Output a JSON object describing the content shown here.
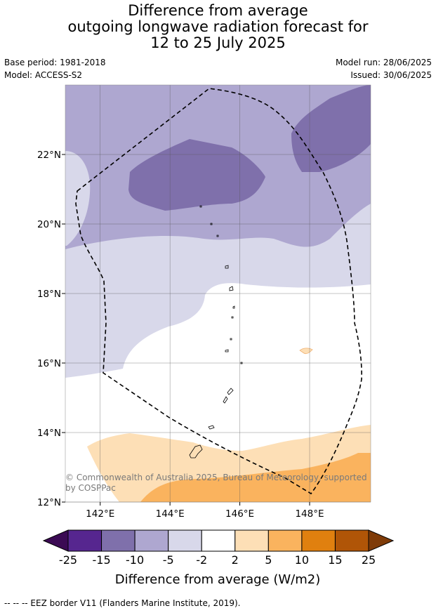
{
  "title": {
    "line1": "Difference from average",
    "line2": "outgoing longwave radiation forecast for",
    "line3": "12 to 25 July 2025"
  },
  "meta": {
    "base_period": "Base period: 1981-2018",
    "model": "Model: ACCESS-S2",
    "model_run": "Model run: 28/06/2025",
    "issued": "Issued: 30/06/2025"
  },
  "copyright": {
    "line1": "© Commonwealth of Australia 2025, Bureau of Meteorology, supported",
    "line2": "by COSPPac"
  },
  "footer": "--  --  -- EEZ border V11 (Flanders Marine Institute, 2019).",
  "chart_data": {
    "type": "heatmap",
    "title": "Difference from average outgoing longwave radiation forecast for 12 to 25 July 2025",
    "xlabel": "",
    "ylabel": "",
    "x_ticks": [
      "142°E",
      "144°E",
      "146°E",
      "148°E"
    ],
    "x_tick_values": [
      142,
      144,
      146,
      148
    ],
    "y_ticks": [
      "22°N",
      "20°N",
      "18°N",
      "16°N",
      "14°N",
      "12°N"
    ],
    "y_tick_values": [
      22,
      20,
      18,
      16,
      14,
      12
    ],
    "xlim": [
      141,
      149.75
    ],
    "ylim": [
      12,
      24
    ],
    "grid": true,
    "colorbar": {
      "label": "Difference from average (W/m2)",
      "boundaries": [
        "-25",
        "-15",
        "-10",
        "-5",
        "-2",
        "2",
        "5",
        "10",
        "15",
        "25"
      ],
      "colors": [
        "#56268f",
        "#7f70ab",
        "#aea7d0",
        "#d8d8ea",
        "#ffffff",
        "#fddfb6",
        "#fab35e",
        "#e0800f",
        "#b05507"
      ],
      "extend_low_color": "#3b0a54",
      "extend_high_color": "#7f3b08"
    },
    "regions": [
      {
        "range": "-15 to -10",
        "description": "northwest (around 143.5°E, 21°N) and northeast (149°E, 22.5°N)"
      },
      {
        "range": "-10 to -5",
        "description": "north of about 19.5°N"
      },
      {
        "range": "-5 to -2",
        "description": "band between about 16°N and 20°N, west and east edges"
      },
      {
        "range": "-2 to 2",
        "description": "central area 14°N to 18°N"
      },
      {
        "range": "2 to 5",
        "description": "south of about 13.5°N and small patch near 147.9°E, 16.3°N"
      },
      {
        "range": "5 to 10",
        "description": "southeast corner south of about 13°N, east of 144°E"
      }
    ],
    "overlay": "EEZ border V11 (dashed line)"
  }
}
